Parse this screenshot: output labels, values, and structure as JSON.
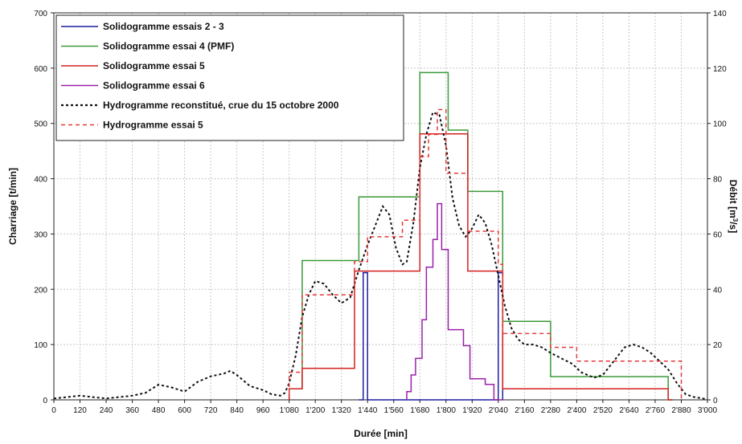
{
  "chart_data": {
    "type": "line",
    "xlabel": "Durée [min]",
    "ylabel_left": "Charriage [t/min]",
    "ylabel_right": "Débit [m³/s]",
    "ylabel_right_parts": {
      "base": "Débit [m",
      "sup": "3",
      "tail": "/s]"
    },
    "xlim": [
      0,
      3000
    ],
    "ylim_left": [
      0,
      700
    ],
    "ylim_right": [
      0,
      140
    ],
    "grid": true,
    "legend_position": "top-left",
    "x_ticks": [
      0,
      120,
      240,
      360,
      480,
      600,
      720,
      840,
      960,
      1080,
      1200,
      1320,
      1440,
      1560,
      1680,
      1800,
      1920,
      2040,
      2160,
      2280,
      2400,
      2520,
      2640,
      2760,
      2880,
      3000
    ],
    "x_tick_labels": [
      "0",
      "120",
      "240",
      "360",
      "480",
      "600",
      "720",
      "840",
      "960",
      "1'080",
      "1'200",
      "1'320",
      "1'440",
      "1'560",
      "1'680",
      "1'800",
      "1'920",
      "2'040",
      "2'160",
      "2'280",
      "2'400",
      "2'520",
      "2'640",
      "2'760",
      "2'880",
      "3'000"
    ],
    "y_left_ticks": [
      "0",
      "100",
      "200",
      "300",
      "400",
      "500",
      "600",
      "700"
    ],
    "y_right_ticks": [
      "0",
      "20",
      "40",
      "60",
      "80",
      "100",
      "120",
      "140"
    ],
    "series": [
      {
        "name": "Solidogramme essais 2 - 3",
        "axis": "left",
        "color": "#1f1f9e",
        "dash": "solid",
        "x": [
          1400,
          1420,
          1420,
          1440,
          1440,
          2040,
          2040,
          2060,
          2060
        ],
        "y": [
          0,
          0,
          230,
          230,
          0,
          0,
          230,
          230,
          0
        ]
      },
      {
        "name": "Solidogramme essai 4 (PMF)",
        "axis": "left",
        "color": "#3a9a3a",
        "dash": "solid",
        "x": [
          1080,
          1080,
          1140,
          1140,
          1400,
          1400,
          1680,
          1680,
          1810,
          1810,
          1900,
          1900,
          2060,
          2060,
          2280,
          2280,
          2820,
          2820,
          2840
        ],
        "y": [
          0,
          20,
          20,
          252,
          252,
          367,
          367,
          592,
          592,
          488,
          488,
          377,
          377,
          142,
          142,
          42,
          42,
          0,
          0
        ]
      },
      {
        "name": "Solidogramme essai 5",
        "axis": "left",
        "color": "#d42020",
        "dash": "solid",
        "x": [
          1080,
          1080,
          1140,
          1140,
          1380,
          1380,
          1680,
          1680,
          1900,
          1900,
          2060,
          2060,
          2820,
          2820,
          2840
        ],
        "y": [
          0,
          20,
          20,
          57,
          57,
          233,
          233,
          481,
          481,
          233,
          233,
          20,
          20,
          0,
          0
        ]
      },
      {
        "name": "Solidogramme essai 6",
        "axis": "left",
        "color": "#9a20aa",
        "dash": "solid",
        "x": [
          1620,
          1620,
          1640,
          1640,
          1660,
          1660,
          1690,
          1690,
          1710,
          1710,
          1740,
          1740,
          1760,
          1760,
          1780,
          1780,
          1810,
          1810,
          1840,
          1840,
          1880,
          1880,
          1910,
          1910,
          1940,
          1940,
          1980,
          1980,
          2020,
          2020,
          2060
        ],
        "y": [
          0,
          15,
          15,
          45,
          45,
          75,
          75,
          145,
          145,
          240,
          240,
          290,
          290,
          355,
          355,
          272,
          272,
          127,
          127,
          127,
          127,
          98,
          98,
          38,
          38,
          38,
          38,
          28,
          28,
          0,
          0
        ]
      },
      {
        "name": "Hydrogramme reconstitué, crue du 15 octobre 2000",
        "axis": "right",
        "color": "#111111",
        "dash": "dotted",
        "x": [
          0,
          60,
          120,
          180,
          240,
          300,
          360,
          420,
          480,
          540,
          600,
          660,
          720,
          780,
          810,
          840,
          900,
          960,
          1000,
          1040,
          1060,
          1080,
          1110,
          1140,
          1170,
          1200,
          1240,
          1280,
          1320,
          1360,
          1380,
          1400,
          1440,
          1480,
          1510,
          1540,
          1570,
          1600,
          1620,
          1650,
          1680,
          1710,
          1740,
          1770,
          1800,
          1830,
          1860,
          1890,
          1920,
          1950,
          1980,
          2010,
          2040,
          2070,
          2100,
          2130,
          2160,
          2200,
          2240,
          2280,
          2330,
          2380,
          2420,
          2480,
          2520,
          2560,
          2620,
          2660,
          2700,
          2740,
          2780,
          2820,
          2860,
          2900,
          2940,
          2980,
          3000
        ],
        "y": [
          0.5,
          1,
          1.5,
          1,
          0.5,
          1,
          1.5,
          2.5,
          5.5,
          4.5,
          3,
          6.5,
          8.5,
          9.5,
          10.5,
          9,
          5,
          3.5,
          2,
          1.5,
          2.5,
          6,
          16,
          30,
          38,
          43,
          42,
          38,
          35,
          37,
          42,
          47,
          56,
          64,
          70,
          67,
          55,
          49,
          50,
          64,
          84,
          96,
          104,
          103,
          92,
          73,
          63,
          59,
          62,
          67,
          64,
          56,
          45,
          34,
          26,
          22,
          20,
          20,
          19,
          17,
          15,
          13,
          10,
          8,
          9,
          13,
          19,
          20,
          19,
          17,
          14,
          11,
          6,
          2,
          1,
          0.5,
          0
        ]
      },
      {
        "name": "Hydrogramme essai 5",
        "axis": "right",
        "color": "#e33b3b",
        "dash": "dashed",
        "x": [
          1080,
          1080,
          1140,
          1140,
          1380,
          1380,
          1440,
          1440,
          1600,
          1600,
          1680,
          1680,
          1720,
          1720,
          1760,
          1760,
          1800,
          1800,
          1840,
          1840,
          1900,
          1900,
          2040,
          2040,
          2060,
          2060,
          2280,
          2280,
          2400,
          2400,
          2880,
          2880
        ],
        "y": [
          2,
          10,
          10,
          38,
          38,
          50,
          50,
          59,
          59,
          65,
          65,
          88,
          88,
          96,
          96,
          105,
          105,
          82,
          82,
          82,
          82,
          61,
          61,
          49,
          49,
          24,
          24,
          19,
          19,
          14,
          14,
          0
        ]
      }
    ]
  }
}
